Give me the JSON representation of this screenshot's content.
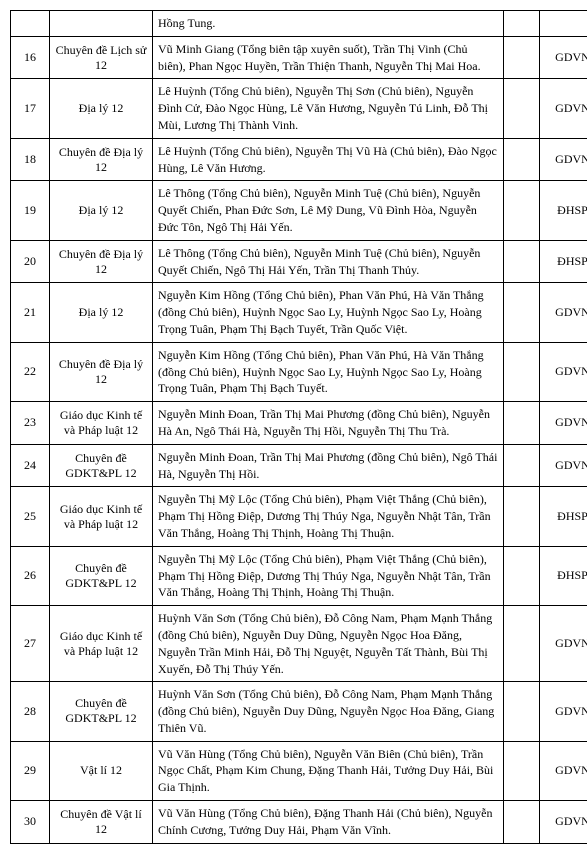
{
  "table": {
    "columns": [
      "num",
      "subject",
      "description",
      "extra",
      "publisher"
    ],
    "col_widths": {
      "num": 28,
      "subject": 92,
      "description": 340,
      "extra": 25,
      "publisher": 55
    },
    "font_family": "Times New Roman",
    "font_size": 12,
    "border_color": "#000000",
    "background_color": "#ffffff",
    "text_color": "#000000",
    "header_row": {
      "num": "",
      "subject": "",
      "description": "Hồng Tung.",
      "extra": "",
      "publisher": ""
    },
    "rows": [
      {
        "num": "16",
        "subject": "Chuyên đề Lịch sử 12",
        "description": "Vũ Minh Giang (Tổng biên tập xuyên suốt), Trần Thị Vinh (Chủ biên), Phan Ngọc Huyền, Trần Thiện Thanh, Nguyễn Thị Mai Hoa.",
        "extra": "",
        "publisher": "GDVN"
      },
      {
        "num": "17",
        "subject": "Địa lý 12",
        "description": "Lê Huỳnh (Tổng Chủ biên), Nguyễn Thị Sơn (Chủ biên), Nguyễn Đình Cử, Đào Ngọc Hùng, Lê Văn Hương, Nguyễn Tú Linh, Đỗ Thị Mùi, Lương Thị Thành Vinh.",
        "extra": "",
        "publisher": "GDVN"
      },
      {
        "num": "18",
        "subject": "Chuyên đề Địa lý 12",
        "description": "Lê Huỳnh (Tổng Chủ biên), Nguyễn Thị Vũ Hà (Chủ biên), Đào Ngọc Hùng, Lê Văn Hương.",
        "extra": "",
        "publisher": "GDVN"
      },
      {
        "num": "19",
        "subject": "Địa lý 12",
        "description": "Lê Thông (Tổng Chủ biên), Nguyễn Minh Tuệ (Chủ biên), Nguyễn Quyết Chiến, Phan Đức Sơn, Lê Mỹ Dung, Vũ Đình Hòa, Nguyễn Đức Tôn, Ngô Thị Hải Yến.",
        "extra": "",
        "publisher": "ĐHSP"
      },
      {
        "num": "20",
        "subject": "Chuyên đề Địa lý 12",
        "description": "Lê Thông (Tổng Chủ biên), Nguyễn Minh Tuệ (Chủ biên), Nguyễn Quyết Chiến, Ngô Thị Hải Yến, Trần Thị Thanh Thủy.",
        "extra": "",
        "publisher": "ĐHSP"
      },
      {
        "num": "21",
        "subject": "Địa lý 12",
        "description": "Nguyễn Kim Hồng (Tổng Chủ biên), Phan Văn Phú, Hà Văn Thắng (đồng Chủ biên), Huỳnh Ngọc Sao Ly, Huỳnh Ngọc Sao Ly, Hoàng Trọng Tuân, Phạm Thị Bạch Tuyết, Trần Quốc Việt.",
        "extra": "",
        "publisher": "GDVN"
      },
      {
        "num": "22",
        "subject": "Chuyên đề Địa lý 12",
        "description": "Nguyễn Kim Hồng (Tổng Chủ biên), Phan Văn Phú, Hà Văn Thắng (đồng Chủ biên), Huỳnh Ngọc Sao Ly, Huỳnh Ngọc Sao Ly, Hoàng Trọng Tuân, Phạm Thị Bạch Tuyết.",
        "extra": "",
        "publisher": "GDVN"
      },
      {
        "num": "23",
        "subject": "Giáo dục Kinh tế và Pháp luật 12",
        "description": "Nguyễn Minh Đoan, Trần Thị Mai Phương (đồng Chủ biên), Nguyễn Hà An, Ngô Thái Hà, Nguyễn Thị Hồi, Nguyễn Thị Thu Trà.",
        "extra": "",
        "publisher": "GDVN"
      },
      {
        "num": "24",
        "subject": "Chuyên đề GDKT&PL 12",
        "description": "Nguyễn Minh Đoan, Trần Thị Mai Phương (đồng Chủ biên), Ngô Thái Hà, Nguyễn Thị Hồi.",
        "extra": "",
        "publisher": "GDVN"
      },
      {
        "num": "25",
        "subject": "Giáo dục Kinh tế và Pháp luật 12",
        "description": "Nguyễn Thị Mỹ Lộc (Tổng Chủ biên), Phạm Việt Thắng (Chủ biên), Phạm Thị Hồng Điệp, Dương Thị Thúy Nga, Nguyễn Nhật Tân, Trần Văn Thắng, Hoàng Thị Thịnh, Hoàng Thị Thuận.",
        "extra": "",
        "publisher": "ĐHSP"
      },
      {
        "num": "26",
        "subject": "Chuyên đề GDKT&PL 12",
        "description": "Nguyễn Thị Mỹ Lộc (Tổng Chủ biên), Phạm Việt Thắng (Chủ biên), Phạm Thị Hồng Điệp, Dương Thị Thúy Nga, Nguyễn Nhật Tân, Trần Văn Thắng, Hoàng Thị Thịnh, Hoàng Thị Thuận.",
        "extra": "",
        "publisher": "ĐHSP"
      },
      {
        "num": "27",
        "subject": "Giáo dục Kinh tế và Pháp luật 12",
        "description": "Huỳnh Văn Sơn (Tổng Chủ biên), Đỗ Công Nam, Phạm Mạnh Thắng (đồng Chủ biên), Nguyễn Duy Dũng, Nguyễn Ngọc Hoa Đăng, Nguyễn Trần Minh Hải, Đỗ Thị Nguyệt, Nguyễn Tất Thành, Bùi Thị Xuyến, Đỗ Thị Thúy Yến.",
        "extra": "",
        "publisher": "GDVN"
      },
      {
        "num": "28",
        "subject": "Chuyên đề GDKT&PL 12",
        "description": "Huỳnh Văn Sơn (Tổng Chủ biên), Đỗ Công Nam, Phạm Mạnh Thắng (đồng Chủ biên), Nguyễn Duy Dũng, Nguyễn Ngọc Hoa Đăng, Giang Thiên Vũ.",
        "extra": "",
        "publisher": "GDVN"
      },
      {
        "num": "29",
        "subject": "Vật lí 12",
        "description": "Vũ Văn Hùng (Tổng Chủ biên), Nguyễn Văn Biên (Chủ biên), Trần Ngọc Chất, Phạm Kim Chung, Đặng Thanh Hải, Tưởng Duy Hải, Bùi Gia Thịnh.",
        "extra": "",
        "publisher": "GDVN"
      },
      {
        "num": "30",
        "subject": "Chuyên đề Vật lí 12",
        "description": "Vũ Văn Hùng (Tổng Chủ biên), Đặng Thanh Hải (Chủ biên), Nguyễn Chính Cương, Tưởng Duy Hải, Phạm Văn Vĩnh.",
        "extra": "",
        "publisher": "GDVN"
      }
    ]
  }
}
